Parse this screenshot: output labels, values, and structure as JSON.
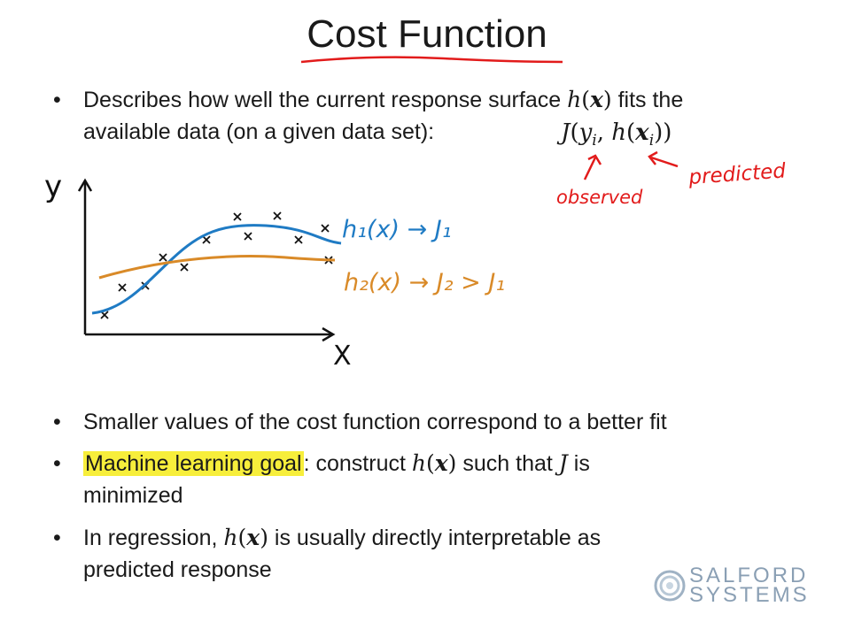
{
  "title": "Cost Function",
  "bullets": {
    "b1": {
      "text_a": "Describes how well the current response surface ",
      "math_h": "h",
      "math_x": "x",
      "text_b": " fits the",
      "line2": "available data (on a given data set):",
      "formula_J": "J",
      "formula_y": "y",
      "formula_i1": "i",
      "formula_h": "h",
      "formula_x": "x",
      "formula_i2": "i"
    },
    "b2": {
      "text": "Smaller values of the cost function correspond to a better fit"
    },
    "b3": {
      "highlight": "Machine learning goal",
      "text_a": ": construct ",
      "math_h": "h",
      "math_x": "x",
      "text_b": " such that ",
      "math_J": "J",
      "text_c": " is",
      "line2": "minimized"
    },
    "b4": {
      "text_a": "In regression, ",
      "math_h": "h",
      "math_x": "x",
      "text_b": " is usually directly interpretable as",
      "line2": "predicted response"
    }
  },
  "annotations": {
    "observed": "observed",
    "predicted": "predicted",
    "axis_y": "y",
    "axis_x": "X",
    "h1_label": "h₁(x) → J₁",
    "h2_label": "h₂(x) → J₂ > J₁"
  },
  "colors": {
    "red_ink": "#e21b1b",
    "blue_ink": "#1f7bc4",
    "orange_ink": "#d98a28",
    "highlight": "#f7ee3b",
    "logo": "#8a9fb4"
  },
  "logo": {
    "line1": "SALFORD",
    "line2": "SYSTEMS"
  }
}
